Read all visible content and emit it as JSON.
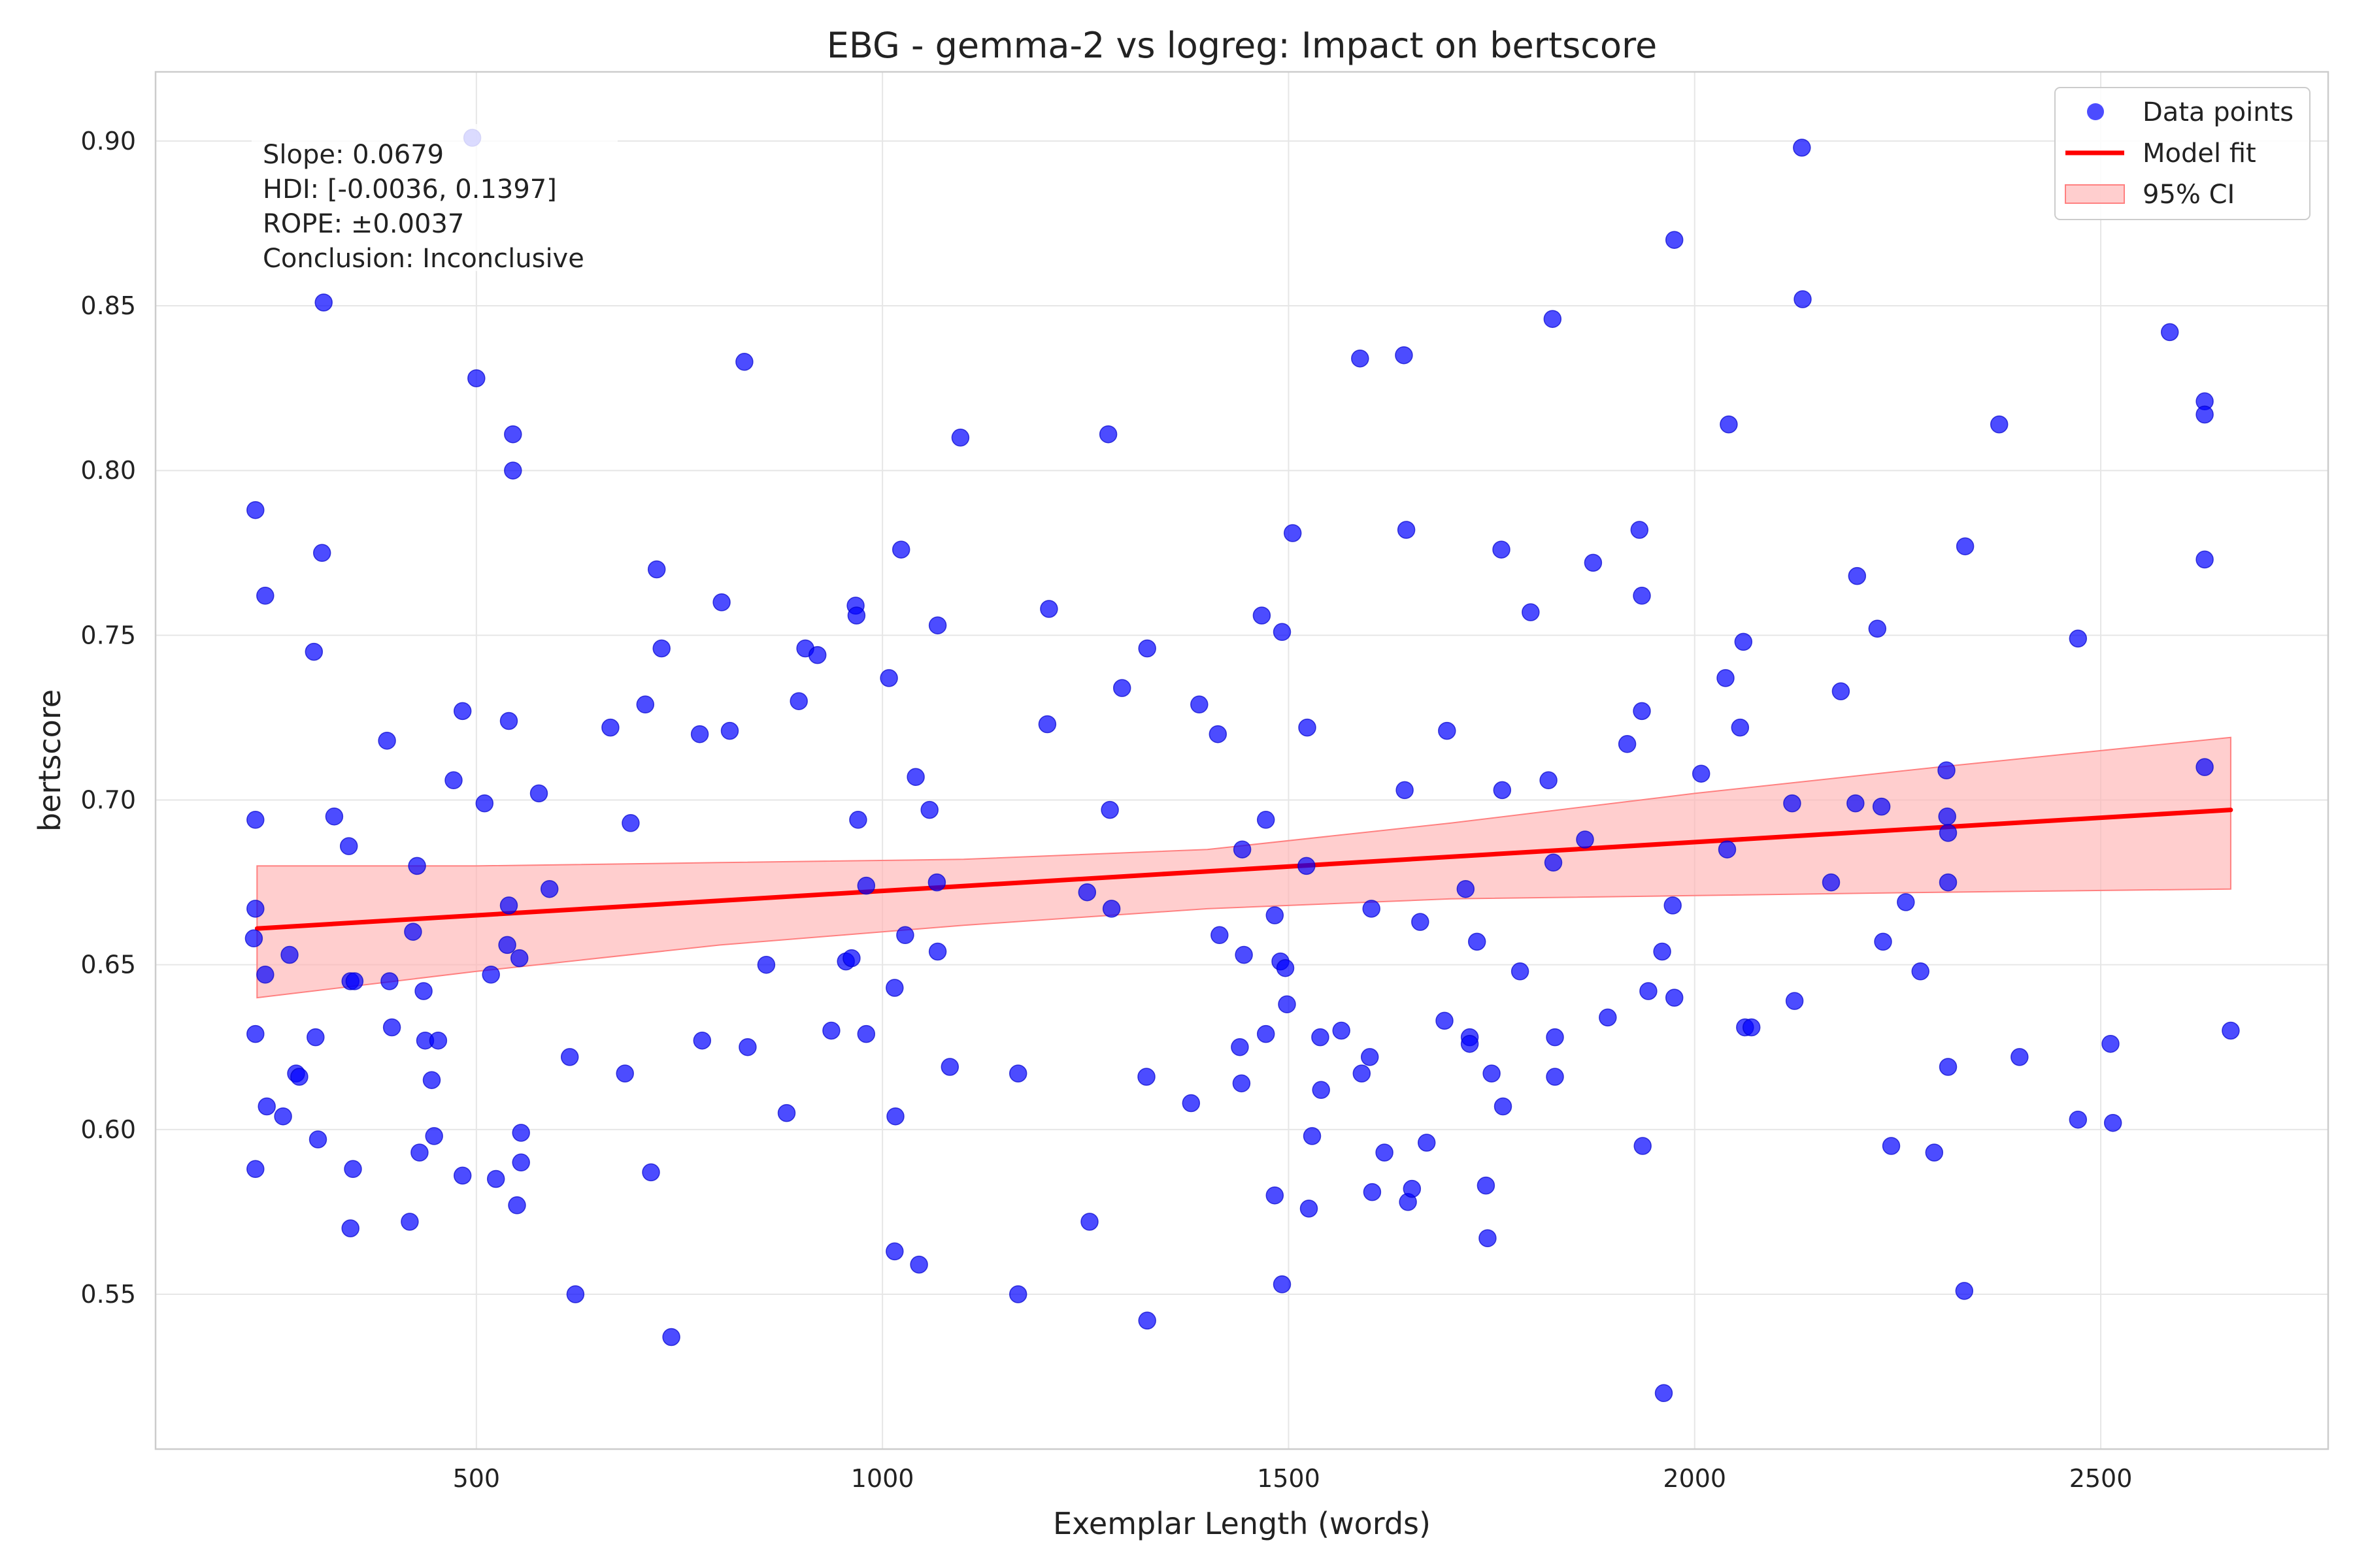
{
  "chart_data": {
    "type": "scatter",
    "title": "EBG - gemma-2 vs logreg: Impact on bertscore",
    "xlabel": "Exemplar Length (words)",
    "ylabel": "bertscore",
    "xlim": [
      105,
      2780
    ],
    "ylim": [
      0.503,
      0.921
    ],
    "x_ticks": [
      500,
      1000,
      1500,
      2000,
      2500
    ],
    "y_ticks": [
      0.55,
      0.6,
      0.65,
      0.7,
      0.75,
      0.8,
      0.85,
      0.9
    ],
    "x_tick_labels": [
      "500",
      "1000",
      "1500",
      "2000",
      "2500"
    ],
    "y_tick_labels": [
      "0.55",
      "0.60",
      "0.65",
      "0.70",
      "0.75",
      "0.80",
      "0.85",
      "0.90"
    ],
    "grid": true,
    "legend_position": "top-right",
    "legend": [
      {
        "label": "Data points",
        "kind": "marker",
        "color": "#0000ff"
      },
      {
        "label": "Model fit",
        "kind": "line",
        "color": "#ff0000"
      },
      {
        "label": "95% CI",
        "kind": "band",
        "color": "#ffcccc"
      }
    ],
    "annotation_lines": [
      "Slope: 0.0679",
      "HDI: [-0.0036, 0.1397]",
      "ROPE: ±0.0037",
      "Conclusion: Inconclusive"
    ],
    "colors": {
      "points": "#0000ff",
      "fit": "#ff0000",
      "ci_fill": "#ffb3b3",
      "ci_edge": "#ff8080"
    },
    "fit_line": {
      "x": [
        230,
        2660
      ],
      "y": [
        0.661,
        0.697
      ]
    },
    "ci_band": {
      "x": [
        230,
        500,
        800,
        1100,
        1400,
        1700,
        2000,
        2300,
        2660
      ],
      "upper": [
        0.68,
        0.68,
        0.681,
        0.682,
        0.685,
        0.693,
        0.702,
        0.71,
        0.719
      ],
      "lower": [
        0.64,
        0.648,
        0.656,
        0.662,
        0.667,
        0.67,
        0.671,
        0.672,
        0.673
      ]
    },
    "series": [
      {
        "name": "Data points",
        "points": [
          [
            228,
            0.788
          ],
          [
            240,
            0.762
          ],
          [
            228,
            0.694
          ],
          [
            228,
            0.667
          ],
          [
            226,
            0.658
          ],
          [
            240,
            0.647
          ],
          [
            228,
            0.629
          ],
          [
            228,
            0.588
          ],
          [
            242,
            0.607
          ],
          [
            262,
            0.604
          ],
          [
            270,
            0.653
          ],
          [
            278,
            0.617
          ],
          [
            282,
            0.616
          ],
          [
            300,
            0.745
          ],
          [
            302,
            0.628
          ],
          [
            305,
            0.597
          ],
          [
            310,
            0.775
          ],
          [
            312,
            0.851
          ],
          [
            325,
            0.695
          ],
          [
            343,
            0.686
          ],
          [
            345,
            0.645
          ],
          [
            350,
            0.645
          ],
          [
            348,
            0.588
          ],
          [
            345,
            0.57
          ],
          [
            390,
            0.718
          ],
          [
            393,
            0.645
          ],
          [
            396,
            0.631
          ],
          [
            418,
            0.572
          ],
          [
            422,
            0.66
          ],
          [
            427,
            0.68
          ],
          [
            430,
            0.593
          ],
          [
            435,
            0.642
          ],
          [
            437,
            0.627
          ],
          [
            445,
            0.615
          ],
          [
            448,
            0.598
          ],
          [
            453,
            0.627
          ],
          [
            472,
            0.706
          ],
          [
            483,
            0.727
          ],
          [
            483,
            0.586
          ],
          [
            495,
            0.901
          ],
          [
            500,
            0.828
          ],
          [
            510,
            0.699
          ],
          [
            518,
            0.647
          ],
          [
            524,
            0.585
          ],
          [
            540,
            0.724
          ],
          [
            540,
            0.668
          ],
          [
            538,
            0.656
          ],
          [
            545,
            0.811
          ],
          [
            545,
            0.8
          ],
          [
            550,
            0.577
          ],
          [
            553,
            0.652
          ],
          [
            555,
            0.599
          ],
          [
            555,
            0.59
          ],
          [
            577,
            0.702
          ],
          [
            590,
            0.673
          ],
          [
            615,
            0.622
          ],
          [
            622,
            0.55
          ],
          [
            665,
            0.722
          ],
          [
            683,
            0.617
          ],
          [
            690,
            0.693
          ],
          [
            708,
            0.729
          ],
          [
            715,
            0.587
          ],
          [
            722,
            0.77
          ],
          [
            728,
            0.746
          ],
          [
            740,
            0.537
          ],
          [
            775,
            0.72
          ],
          [
            778,
            0.627
          ],
          [
            802,
            0.76
          ],
          [
            812,
            0.721
          ],
          [
            830,
            0.833
          ],
          [
            834,
            0.625
          ],
          [
            857,
            0.65
          ],
          [
            882,
            0.605
          ],
          [
            897,
            0.73
          ],
          [
            905,
            0.746
          ],
          [
            920,
            0.744
          ],
          [
            937,
            0.63
          ],
          [
            955,
            0.651
          ],
          [
            962,
            0.652
          ],
          [
            967,
            0.759
          ],
          [
            968,
            0.756
          ],
          [
            970,
            0.694
          ],
          [
            980,
            0.629
          ],
          [
            980,
            0.674
          ],
          [
            1008,
            0.737
          ],
          [
            1015,
            0.643
          ],
          [
            1016,
            0.604
          ],
          [
            1015,
            0.563
          ],
          [
            1023,
            0.776
          ],
          [
            1028,
            0.659
          ],
          [
            1041,
            0.707
          ],
          [
            1045,
            0.559
          ],
          [
            1058,
            0.697
          ],
          [
            1067,
            0.675
          ],
          [
            1068,
            0.654
          ],
          [
            1068,
            0.753
          ],
          [
            1083,
            0.619
          ],
          [
            1096,
            0.81
          ],
          [
            1167,
            0.617
          ],
          [
            1167,
            0.55
          ],
          [
            1203,
            0.723
          ],
          [
            1205,
            0.758
          ],
          [
            1252,
            0.672
          ],
          [
            1255,
            0.572
          ],
          [
            1278,
            0.811
          ],
          [
            1280,
            0.697
          ],
          [
            1282,
            0.667
          ],
          [
            1295,
            0.734
          ],
          [
            1325,
            0.616
          ],
          [
            1326,
            0.746
          ],
          [
            1326,
            0.542
          ],
          [
            1380,
            0.608
          ],
          [
            1390,
            0.729
          ],
          [
            1413,
            0.72
          ],
          [
            1415,
            0.659
          ],
          [
            1440,
            0.625
          ],
          [
            1442,
            0.614
          ],
          [
            1443,
            0.685
          ],
          [
            1445,
            0.653
          ],
          [
            1467,
            0.756
          ],
          [
            1472,
            0.694
          ],
          [
            1472,
            0.629
          ],
          [
            1483,
            0.665
          ],
          [
            1483,
            0.58
          ],
          [
            1492,
            0.751
          ],
          [
            1490,
            0.651
          ],
          [
            1496,
            0.649
          ],
          [
            1492,
            0.553
          ],
          [
            1498,
            0.638
          ],
          [
            1505,
            0.781
          ],
          [
            1522,
            0.68
          ],
          [
            1523,
            0.722
          ],
          [
            1525,
            0.576
          ],
          [
            1529,
            0.598
          ],
          [
            1539,
            0.628
          ],
          [
            1540,
            0.612
          ],
          [
            1565,
            0.63
          ],
          [
            1588,
            0.834
          ],
          [
            1590,
            0.617
          ],
          [
            1600,
            0.622
          ],
          [
            1602,
            0.667
          ],
          [
            1603,
            0.581
          ],
          [
            1618,
            0.593
          ],
          [
            1642,
            0.835
          ],
          [
            1643,
            0.703
          ],
          [
            1645,
            0.782
          ],
          [
            1647,
            0.578
          ],
          [
            1652,
            0.582
          ],
          [
            1662,
            0.663
          ],
          [
            1670,
            0.596
          ],
          [
            1692,
            0.633
          ],
          [
            1695,
            0.721
          ],
          [
            1718,
            0.673
          ],
          [
            1723,
            0.628
          ],
          [
            1723,
            0.626
          ],
          [
            1732,
            0.657
          ],
          [
            1743,
            0.583
          ],
          [
            1745,
            0.567
          ],
          [
            1750,
            0.617
          ],
          [
            1762,
            0.776
          ],
          [
            1763,
            0.703
          ],
          [
            1764,
            0.607
          ],
          [
            1785,
            0.648
          ],
          [
            1798,
            0.757
          ],
          [
            1820,
            0.706
          ],
          [
            1825,
            0.846
          ],
          [
            1826,
            0.681
          ],
          [
            1828,
            0.628
          ],
          [
            1828,
            0.616
          ],
          [
            1865,
            0.688
          ],
          [
            1875,
            0.772
          ],
          [
            1893,
            0.634
          ],
          [
            1917,
            0.717
          ],
          [
            1932,
            0.782
          ],
          [
            1935,
            0.762
          ],
          [
            1935,
            0.727
          ],
          [
            1936,
            0.595
          ],
          [
            1943,
            0.642
          ],
          [
            1960,
            0.654
          ],
          [
            1962,
            0.52
          ],
          [
            1973,
            0.668
          ],
          [
            1975,
            0.87
          ],
          [
            1975,
            0.64
          ],
          [
            2008,
            0.708
          ],
          [
            2038,
            0.737
          ],
          [
            2040,
            0.685
          ],
          [
            2042,
            0.814
          ],
          [
            2056,
            0.722
          ],
          [
            2060,
            0.748
          ],
          [
            2062,
            0.631
          ],
          [
            2070,
            0.631
          ],
          [
            2120,
            0.699
          ],
          [
            2123,
            0.639
          ],
          [
            2132,
            0.898
          ],
          [
            2133,
            0.852
          ],
          [
            2168,
            0.675
          ],
          [
            2180,
            0.733
          ],
          [
            2198,
            0.699
          ],
          [
            2200,
            0.768
          ],
          [
            2225,
            0.752
          ],
          [
            2230,
            0.698
          ],
          [
            2232,
            0.657
          ],
          [
            2242,
            0.595
          ],
          [
            2260,
            0.669
          ],
          [
            2278,
            0.648
          ],
          [
            2295,
            0.593
          ],
          [
            2310,
            0.709
          ],
          [
            2311,
            0.695
          ],
          [
            2312,
            0.69
          ],
          [
            2312,
            0.675
          ],
          [
            2312,
            0.619
          ],
          [
            2332,
            0.551
          ],
          [
            2333,
            0.777
          ],
          [
            2375,
            0.814
          ],
          [
            2400,
            0.622
          ],
          [
            2472,
            0.749
          ],
          [
            2472,
            0.603
          ],
          [
            2512,
            0.626
          ],
          [
            2515,
            0.602
          ],
          [
            2585,
            0.842
          ],
          [
            2628,
            0.821
          ],
          [
            2628,
            0.817
          ],
          [
            2628,
            0.773
          ],
          [
            2628,
            0.71
          ],
          [
            2660,
            0.63
          ]
        ]
      }
    ]
  }
}
